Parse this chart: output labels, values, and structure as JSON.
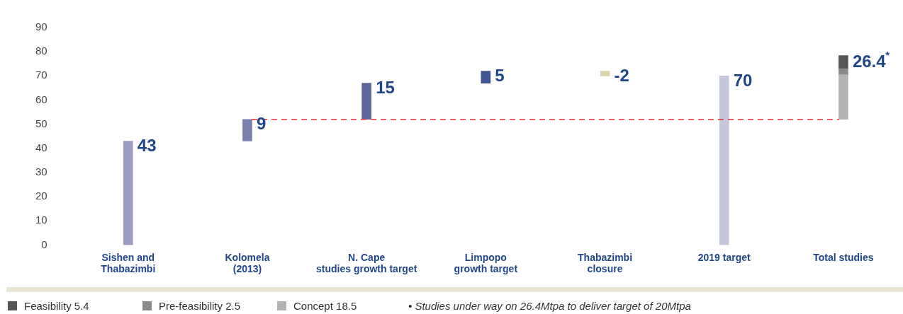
{
  "chart_data": {
    "type": "bar",
    "categories": [
      "Sishen and\nThabazimbi",
      "Kolomela\n(2013)",
      "N. Cape\nstudies growth target",
      "Limpopo\ngrowth target",
      "Thabazimbi\nclosure",
      "2019 target",
      "Total studies"
    ],
    "series": [
      {
        "colors": [
          "#9b9dc0",
          "#7b80ad",
          "#5c6699",
          "#3d5590",
          "#ddd3b0",
          "#c6c7dc",
          null
        ],
        "values": [
          43,
          9,
          15,
          5,
          -2,
          70,
          null
        ],
        "base": [
          0,
          43,
          52,
          67,
          72,
          0,
          null
        ],
        "value_labels": [
          "43",
          "9",
          "15",
          "5",
          "-2",
          "70",
          null
        ]
      },
      {
        "name": "Concept 18.5",
        "color": "#b3b3b3",
        "values": [
          null,
          null,
          null,
          null,
          null,
          null,
          18.5
        ],
        "base": [
          null,
          null,
          null,
          null,
          null,
          null,
          52
        ]
      },
      {
        "name": "Pre-feasibility 2.5",
        "color": "#8a8a8a",
        "values": [
          null,
          null,
          null,
          null,
          null,
          null,
          2.5
        ],
        "base": [
          null,
          null,
          null,
          null,
          null,
          null,
          70.5
        ]
      },
      {
        "name": "Feasibility 5.4",
        "color": "#555555",
        "values": [
          null,
          null,
          null,
          null,
          null,
          null,
          5.4
        ],
        "base": [
          null,
          null,
          null,
          null,
          null,
          null,
          73
        ]
      }
    ],
    "totals": [
      null,
      null,
      null,
      null,
      null,
      null,
      "26.4$^{*}$"
    ],
    "ylim": [
      0,
      90
    ],
    "yticks": [
      0,
      10,
      20,
      30,
      40,
      50,
      60,
      70,
      80,
      90
    ],
    "ref_lines": [
      {
        "axis": "y",
        "value": 52,
        "color": "#e8303a",
        "line_style": "dashed"
      }
    ],
    "grid": false,
    "legend": "bottom left",
    "annotations": [
      "• Studies under way on 26.4Mtpa to deliver target of 20Mtpa"
    ]
  }
}
